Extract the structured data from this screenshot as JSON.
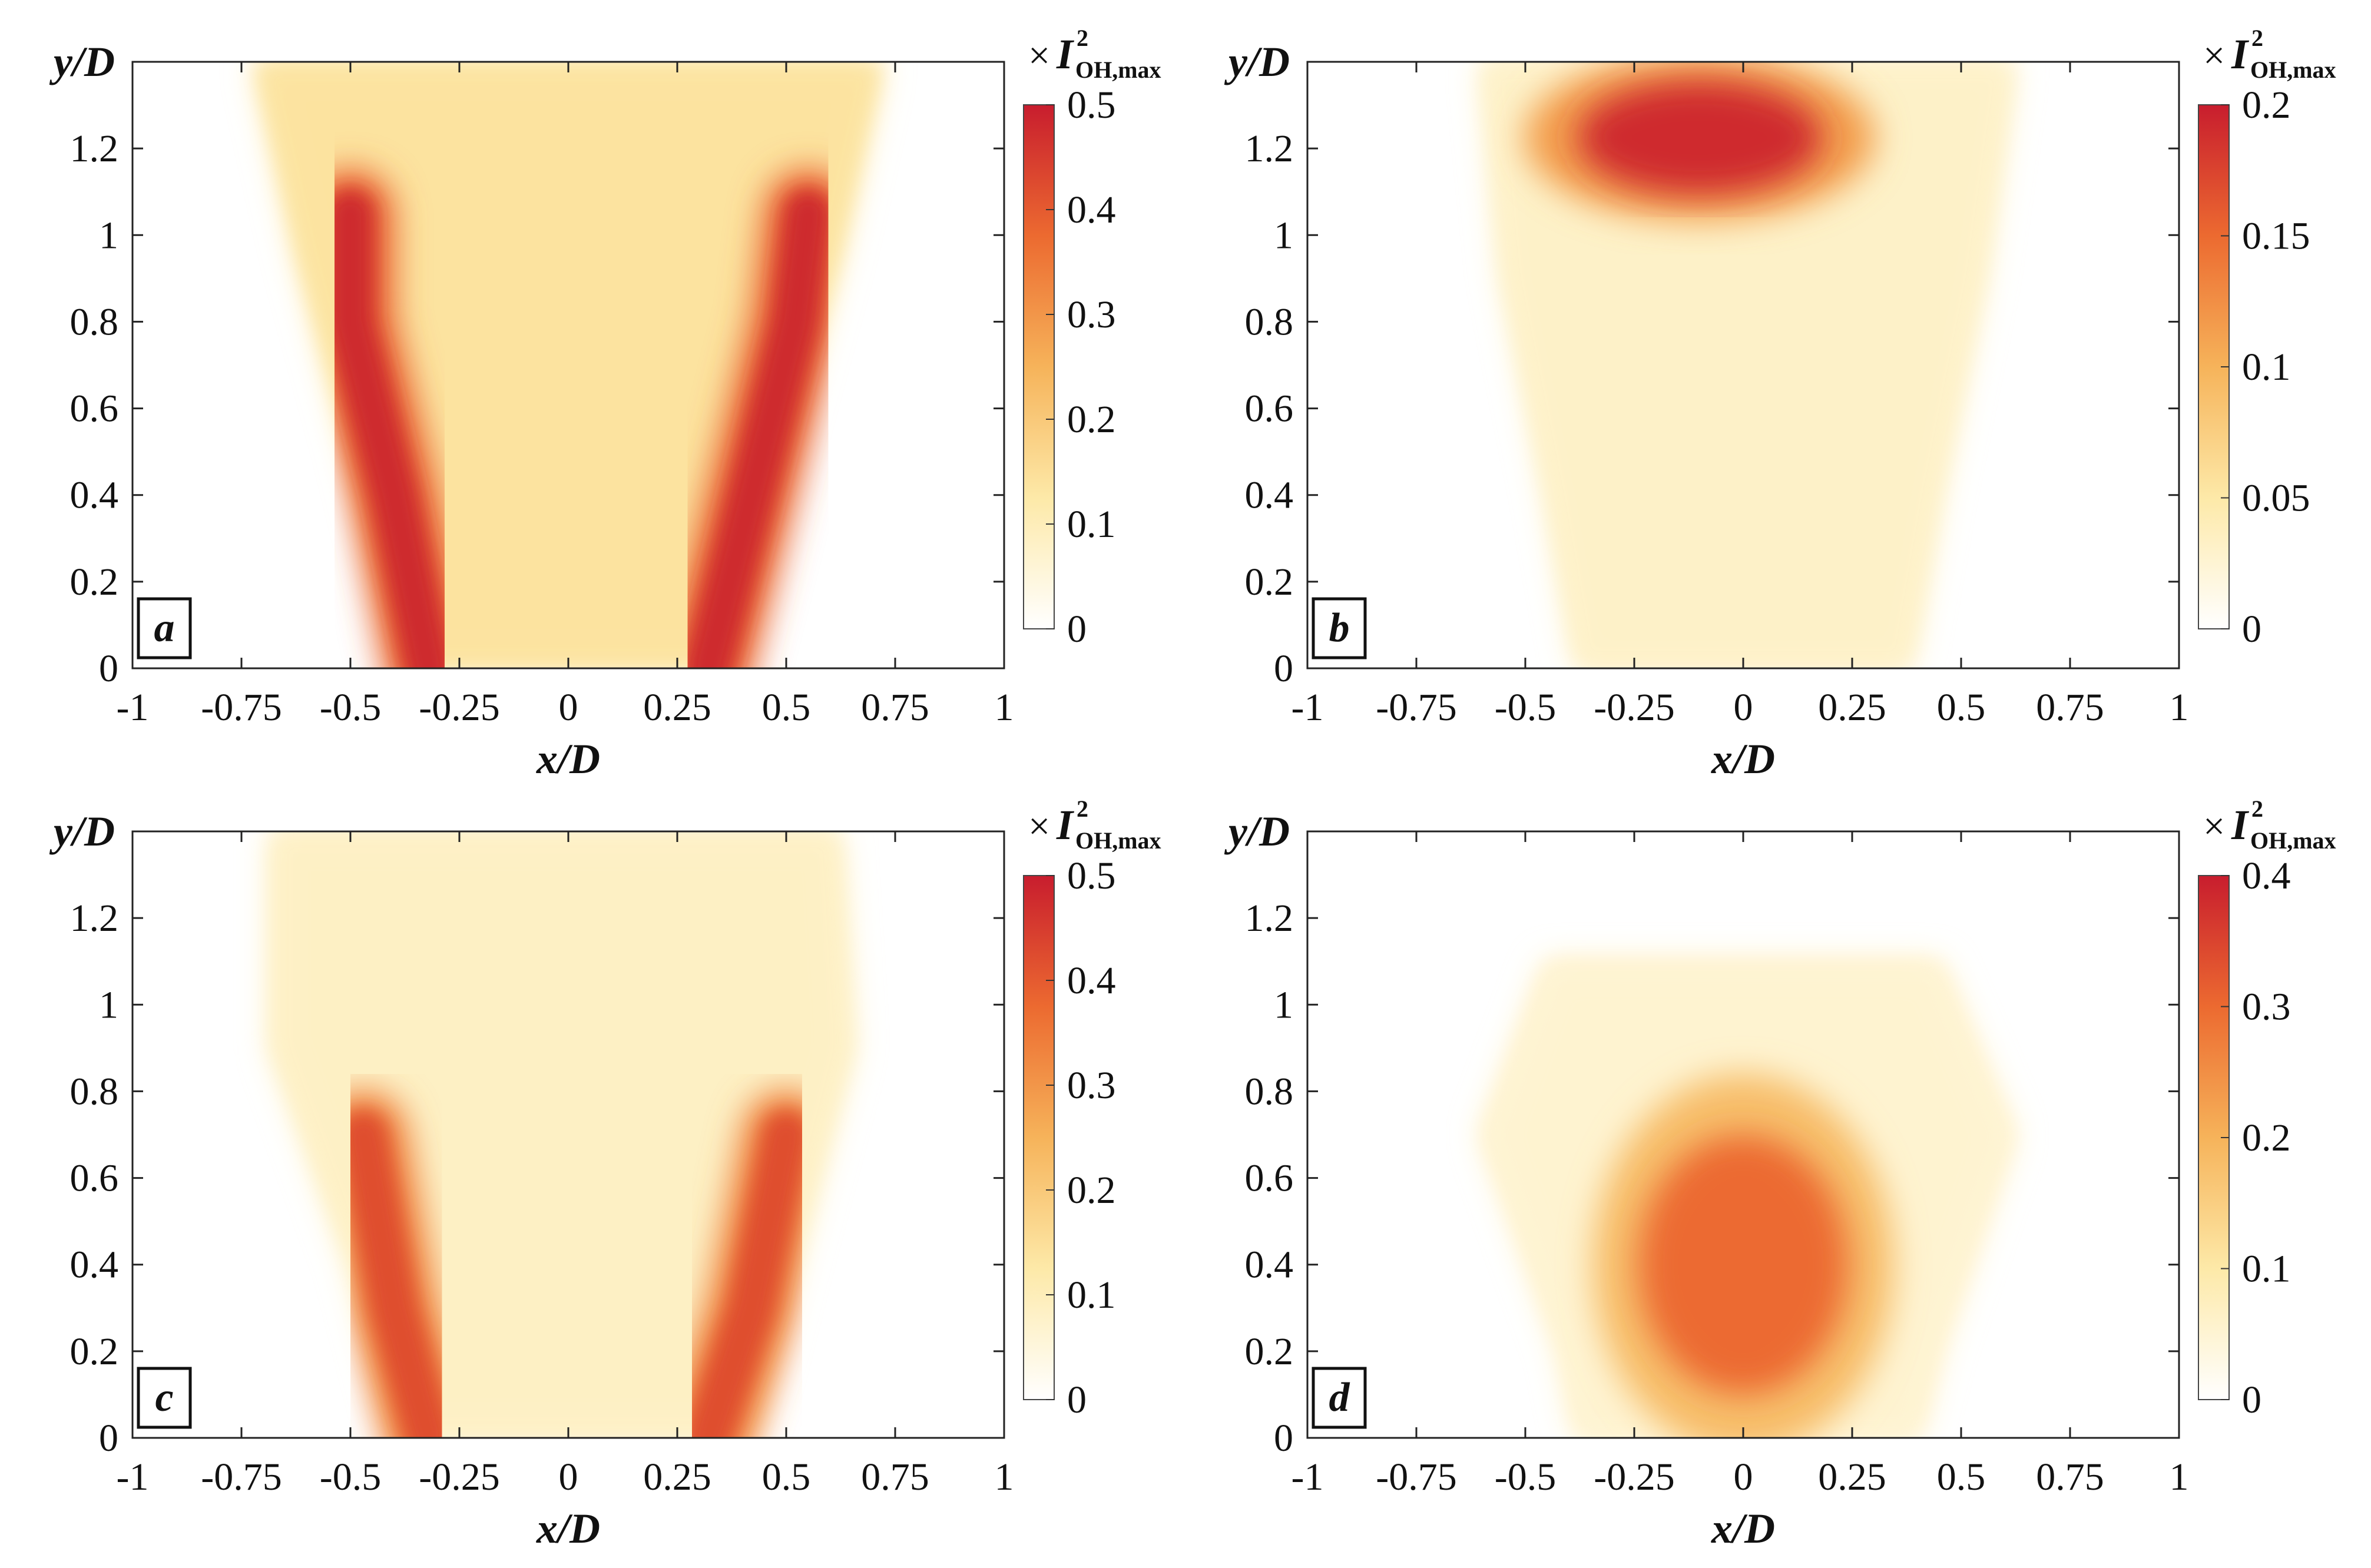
{
  "figure": {
    "x_axis_label": "x/D",
    "y_axis_label": "y/D",
    "colorbar_title": {
      "prefix": "×",
      "symbol": "I",
      "subscript": "OH,max",
      "superscript": "2"
    },
    "colors": {
      "low": "#ffffff",
      "mid1": "#fde9a8",
      "mid2": "#f6b35a",
      "mid3": "#ec6a30",
      "high": "#c81d2e"
    }
  },
  "chart_data": [
    {
      "type": "heatmap",
      "panel": "a",
      "xlim": [
        -1,
        1
      ],
      "ylim": [
        0,
        1.4
      ],
      "x_ticks": [
        "-1",
        "-0.75",
        "-0.5",
        "-0.25",
        "0",
        "0.25",
        "0.5",
        "0.75",
        "1"
      ],
      "y_ticks": [
        "0",
        "0.2",
        "0.4",
        "0.6",
        "0.8",
        "1",
        "1.2"
      ],
      "colorbar": {
        "min": 0,
        "max": 0.5,
        "ticks": [
          "0",
          "0.1",
          "0.2",
          "0.3",
          "0.4",
          "0.5"
        ]
      },
      "features": {
        "outer_edge": [
          [
            -0.72,
            1.4
          ],
          [
            -0.62,
            0.95
          ],
          [
            -0.5,
            0.5
          ],
          [
            -0.38,
            0.0
          ],
          [
            0.38,
            0.0
          ],
          [
            0.5,
            0.5
          ],
          [
            0.62,
            0.95
          ],
          [
            0.72,
            1.4
          ]
        ],
        "interior_level": 0.14,
        "peak_bands": [
          {
            "side": "left",
            "path": [
              [
                -0.32,
                0.0
              ],
              [
                -0.4,
                0.4
              ],
              [
                -0.5,
                0.8
              ],
              [
                -0.5,
                1.05
              ]
            ],
            "level": 0.48
          },
          {
            "side": "right",
            "path": [
              [
                0.32,
                0.0
              ],
              [
                0.42,
                0.4
              ],
              [
                0.52,
                0.8
              ],
              [
                0.55,
                1.05
              ]
            ],
            "level": 0.48
          }
        ]
      }
    },
    {
      "type": "heatmap",
      "panel": "b",
      "xlim": [
        -1,
        1
      ],
      "ylim": [
        0,
        1.4
      ],
      "x_ticks": [
        "-1",
        "-0.75",
        "-0.5",
        "-0.25",
        "0",
        "0.25",
        "0.5",
        "0.75",
        "1"
      ],
      "y_ticks": [
        "0",
        "0.2",
        "0.4",
        "0.6",
        "0.8",
        "1",
        "1.2"
      ],
      "colorbar": {
        "min": 0,
        "max": 0.2,
        "ticks": [
          "0",
          "0.05",
          "0.1",
          "0.15",
          "0.2"
        ]
      },
      "features": {
        "outer_edge": [
          [
            -0.6,
            1.4
          ],
          [
            -0.55,
            0.9
          ],
          [
            -0.45,
            0.4
          ],
          [
            -0.38,
            0.0
          ],
          [
            0.38,
            0.0
          ],
          [
            0.45,
            0.4
          ],
          [
            0.55,
            0.9
          ],
          [
            0.62,
            1.4
          ]
        ],
        "interior_level": 0.03,
        "peak_region": {
          "x": [
            -0.45,
            0.25
          ],
          "y": [
            1.05,
            1.4
          ],
          "level": 0.19
        }
      }
    },
    {
      "type": "heatmap",
      "panel": "c",
      "xlim": [
        -1,
        1
      ],
      "ylim": [
        0,
        1.4
      ],
      "x_ticks": [
        "-1",
        "-0.75",
        "-0.5",
        "-0.25",
        "0",
        "0.25",
        "0.5",
        "0.75",
        "1"
      ],
      "y_ticks": [
        "0",
        "0.2",
        "0.4",
        "0.6",
        "0.8",
        "1",
        "1.2"
      ],
      "colorbar": {
        "min": 0,
        "max": 0.5,
        "ticks": [
          "0",
          "0.1",
          "0.2",
          "0.3",
          "0.4",
          "0.5"
        ]
      },
      "features": {
        "outer_edge": [
          [
            -0.68,
            1.4
          ],
          [
            -0.68,
            0.9
          ],
          [
            -0.5,
            0.4
          ],
          [
            -0.4,
            0.0
          ],
          [
            0.42,
            0.0
          ],
          [
            0.52,
            0.4
          ],
          [
            0.65,
            0.9
          ],
          [
            0.62,
            1.4
          ]
        ],
        "interior_level": 0.08,
        "peak_bands": [
          {
            "side": "left",
            "path": [
              [
                -0.32,
                0.0
              ],
              [
                -0.4,
                0.3
              ],
              [
                -0.47,
                0.7
              ]
            ],
            "level": 0.42
          },
          {
            "side": "right",
            "path": [
              [
                0.32,
                0.0
              ],
              [
                0.42,
                0.3
              ],
              [
                0.5,
                0.7
              ]
            ],
            "level": 0.42
          }
        ]
      }
    },
    {
      "type": "heatmap",
      "panel": "d",
      "xlim": [
        -1,
        1
      ],
      "ylim": [
        0,
        1.4
      ],
      "x_ticks": [
        "-1",
        "-0.75",
        "-0.5",
        "-0.25",
        "0",
        "0.25",
        "0.5",
        "0.75",
        "1"
      ],
      "y_ticks": [
        "0",
        "0.2",
        "0.4",
        "0.6",
        "0.8",
        "1",
        "1.2"
      ],
      "colorbar": {
        "min": 0,
        "max": 0.4,
        "ticks": [
          "0",
          "0.1",
          "0.2",
          "0.3",
          "0.4"
        ]
      },
      "features": {
        "outer_edge": [
          [
            -0.45,
            1.1
          ],
          [
            -0.6,
            0.7
          ],
          [
            -0.42,
            0.2
          ],
          [
            -0.38,
            0.0
          ],
          [
            0.4,
            0.0
          ],
          [
            0.45,
            0.2
          ],
          [
            0.62,
            0.7
          ],
          [
            0.45,
            1.1
          ]
        ],
        "interior_level": 0.05,
        "peak_region": {
          "x": [
            -0.3,
            0.3
          ],
          "y": [
            0.0,
            0.8
          ],
          "level": 0.3
        }
      }
    }
  ]
}
